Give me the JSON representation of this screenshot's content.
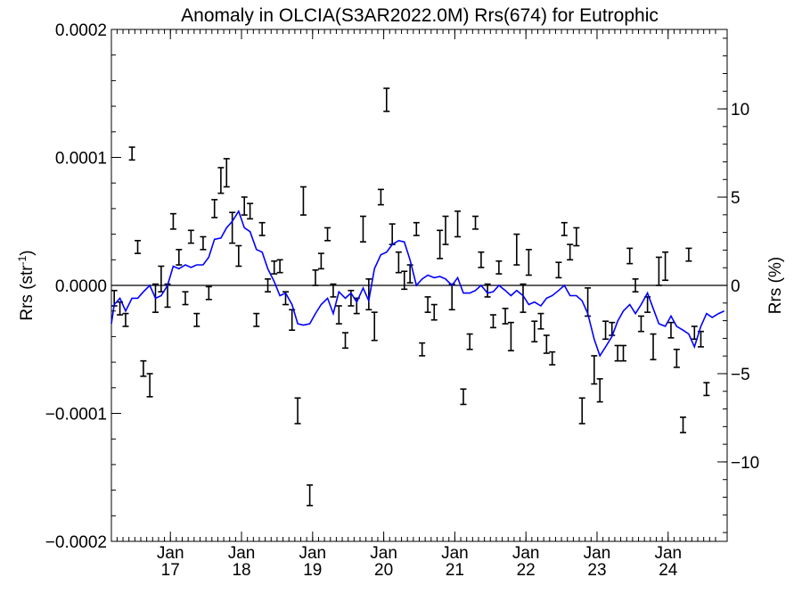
{
  "chart_data": {
    "type": "line",
    "title": "Anomaly in OLCIA(S3AR2022.0M) Rrs(674) for Eutrophic",
    "ylabel_left": "Rrs (str",
    "ylabel_left_sup": "-1",
    "ylabel_left_close": ")",
    "ylabel_right": "Rrs (%)",
    "ylim": [
      -0.0002,
      0.0002
    ],
    "ylim_right": [
      -14.5,
      14.5
    ],
    "xlim": [
      2016.17,
      2024.83
    ],
    "left_ticks": [
      {
        "value": 0.0002,
        "label": "0.0002"
      },
      {
        "value": 0.0001,
        "label": "0.0001"
      },
      {
        "value": 0.0,
        "label": "0.0000"
      },
      {
        "value": -0.0001,
        "label": "−0.0001"
      },
      {
        "value": -0.0002,
        "label": "−0.0002"
      }
    ],
    "right_ticks": [
      {
        "value": 10,
        "label": "10"
      },
      {
        "value": 5,
        "label": "5"
      },
      {
        "value": 0,
        "label": "0"
      },
      {
        "value": -5,
        "label": "−5"
      },
      {
        "value": -10,
        "label": "−10"
      }
    ],
    "x_ticks": [
      {
        "value": 2017,
        "label1": "Jan",
        "label2": "17"
      },
      {
        "value": 2018,
        "label1": "Jan",
        "label2": "18"
      },
      {
        "value": 2019,
        "label1": "Jan",
        "label2": "19"
      },
      {
        "value": 2020,
        "label1": "Jan",
        "label2": "20"
      },
      {
        "value": 2021,
        "label1": "Jan",
        "label2": "21"
      },
      {
        "value": 2022,
        "label1": "Jan",
        "label2": "22"
      },
      {
        "value": 2023,
        "label1": "Jan",
        "label2": "23"
      },
      {
        "value": 2024,
        "label1": "Jan",
        "label2": "24"
      }
    ],
    "series": [
      {
        "kind": "errorbar",
        "color": "#000000",
        "points": [
          [
            2016.21,
            -1e-05,
            6e-06
          ],
          [
            2016.29,
            -1.8e-05,
            5e-06
          ],
          [
            2016.37,
            -2.7e-05,
            5e-06
          ],
          [
            2016.46,
            0.000103,
            5e-06
          ],
          [
            2016.54,
            3e-05,
            5e-06
          ],
          [
            2016.62,
            -6.5e-05,
            6e-06
          ],
          [
            2016.71,
            -7.8e-05,
            9e-06
          ],
          [
            2016.79,
            -1e-05,
            1.1e-05
          ],
          [
            2016.87,
            5e-06,
            1e-05
          ],
          [
            2016.96,
            -8e-06,
            9e-06
          ],
          [
            2017.04,
            5e-05,
            6e-06
          ],
          [
            2017.12,
            2.2e-05,
            6e-06
          ],
          [
            2017.21,
            -1e-05,
            5e-06
          ],
          [
            2017.29,
            3.8e-05,
            5e-06
          ],
          [
            2017.37,
            -2.7e-05,
            5e-06
          ],
          [
            2017.46,
            3.3e-05,
            5e-06
          ],
          [
            2017.54,
            -6e-06,
            5e-06
          ],
          [
            2017.62,
            6e-05,
            7e-06
          ],
          [
            2017.71,
            8.2e-05,
            1e-05
          ],
          [
            2017.79,
            8.8e-05,
            1.1e-05
          ],
          [
            2017.87,
            4.5e-05,
            1.2e-05
          ],
          [
            2017.96,
            2.3e-05,
            8e-06
          ],
          [
            2018.04,
            6.2e-05,
            7e-06
          ],
          [
            2018.12,
            5.8e-05,
            6e-06
          ],
          [
            2018.21,
            -2.7e-05,
            5e-06
          ],
          [
            2018.29,
            4.4e-05,
            5e-06
          ],
          [
            2018.37,
            0.0,
            5e-06
          ],
          [
            2018.46,
            1.4e-05,
            5e-06
          ],
          [
            2018.54,
            1.5e-05,
            5e-06
          ],
          [
            2018.62,
            -1e-05,
            5e-06
          ],
          [
            2018.71,
            -2.7e-05,
            8e-06
          ],
          [
            2018.79,
            -9.8e-05,
            1e-05
          ],
          [
            2018.87,
            6.6e-05,
            1.1e-05
          ],
          [
            2018.96,
            -0.000164,
            8e-06
          ],
          [
            2019.04,
            6e-06,
            6e-06
          ],
          [
            2019.12,
            1.9e-05,
            6e-06
          ],
          [
            2019.21,
            4e-05,
            5e-06
          ],
          [
            2019.29,
            -4e-06,
            5e-06
          ],
          [
            2019.37,
            -2.3e-05,
            7e-06
          ],
          [
            2019.46,
            -4.3e-05,
            6e-06
          ],
          [
            2019.54,
            -1e-05,
            6e-06
          ],
          [
            2019.62,
            -1.6e-05,
            6e-06
          ],
          [
            2019.71,
            4.4e-05,
            1e-05
          ],
          [
            2019.79,
            -7e-06,
            1.2e-05
          ],
          [
            2019.87,
            -3.2e-05,
            1.1e-05
          ],
          [
            2019.96,
            6.9e-05,
            6e-06
          ],
          [
            2020.04,
            0.000145,
            9e-06
          ],
          [
            2020.12,
            4e-05,
            8e-06
          ],
          [
            2020.21,
            1.8e-05,
            8e-06
          ],
          [
            2020.29,
            4e-06,
            7e-06
          ],
          [
            2020.37,
            9e-06,
            7e-06
          ],
          [
            2020.46,
            4.4e-05,
            5e-06
          ],
          [
            2020.54,
            -5e-05,
            5e-06
          ],
          [
            2020.62,
            -1.5e-05,
            6e-06
          ],
          [
            2020.71,
            -2.1e-05,
            6e-06
          ],
          [
            2020.79,
            3.2e-05,
            1.1e-05
          ],
          [
            2020.87,
            4.3e-05,
            1.1e-05
          ],
          [
            2020.96,
            -9e-06,
            1e-05
          ],
          [
            2021.04,
            4.8e-05,
            1e-05
          ],
          [
            2021.12,
            -8.7e-05,
            6e-06
          ],
          [
            2021.21,
            -4.4e-05,
            6e-06
          ],
          [
            2021.29,
            4.9e-05,
            5e-06
          ],
          [
            2021.37,
            2e-05,
            6e-06
          ],
          [
            2021.46,
            -4e-06,
            5e-06
          ],
          [
            2021.54,
            -2.8e-05,
            5e-06
          ],
          [
            2021.62,
            1.4e-05,
            5e-06
          ],
          [
            2021.71,
            -2.4e-05,
            6e-06
          ],
          [
            2021.79,
            -4e-05,
            1.1e-05
          ],
          [
            2021.87,
            2.8e-05,
            1.2e-05
          ],
          [
            2021.96,
            -1e-05,
            1.1e-05
          ],
          [
            2022.04,
            1.8e-05,
            1e-05
          ],
          [
            2022.12,
            -3.6e-05,
            8e-06
          ],
          [
            2022.21,
            -2.8e-05,
            6e-06
          ],
          [
            2022.29,
            -4.6e-05,
            7e-06
          ],
          [
            2022.37,
            -5.7e-05,
            5e-06
          ],
          [
            2022.46,
            1.2e-05,
            6e-06
          ],
          [
            2022.54,
            4.4e-05,
            5e-06
          ],
          [
            2022.62,
            2.6e-05,
            6e-06
          ],
          [
            2022.71,
            3.8e-05,
            7e-06
          ],
          [
            2022.79,
            -9.8e-05,
            1e-05
          ],
          [
            2022.87,
            -1.3e-05,
            1.1e-05
          ],
          [
            2022.96,
            -6.6e-05,
            1.1e-05
          ],
          [
            2023.04,
            -8.2e-05,
            9e-06
          ],
          [
            2023.12,
            -3.5e-05,
            7e-06
          ],
          [
            2023.21,
            -3.4e-05,
            5e-06
          ],
          [
            2023.29,
            -5.3e-05,
            6e-06
          ],
          [
            2023.37,
            -5.3e-05,
            6e-06
          ],
          [
            2023.46,
            2.3e-05,
            6e-06
          ],
          [
            2023.54,
            0.0,
            5e-06
          ],
          [
            2023.62,
            -3e-05,
            6e-06
          ],
          [
            2023.71,
            -1.5e-05,
            6e-06
          ],
          [
            2023.79,
            -4.8e-05,
            1e-05
          ],
          [
            2023.87,
            1.1e-05,
            1.1e-05
          ],
          [
            2023.96,
            1.5e-05,
            1.1e-05
          ],
          [
            2024.04,
            -3.5e-05,
            6e-06
          ],
          [
            2024.12,
            -5.7e-05,
            7e-06
          ],
          [
            2024.21,
            -0.000109,
            6e-06
          ],
          [
            2024.29,
            2.4e-05,
            5e-06
          ],
          [
            2024.37,
            -3.7e-05,
            5e-06
          ],
          [
            2024.46,
            -4.2e-05,
            6e-06
          ],
          [
            2024.54,
            -8.1e-05,
            5e-06
          ]
        ]
      },
      {
        "kind": "line",
        "color": "#0000ff",
        "points": [
          [
            2016.17,
            -3e-05
          ],
          [
            2016.21,
            -1.5e-05
          ],
          [
            2016.29,
            -1e-05
          ],
          [
            2016.37,
            -2e-05
          ],
          [
            2016.46,
            -1e-05
          ],
          [
            2016.54,
            -1e-05
          ],
          [
            2016.62,
            -5e-06
          ],
          [
            2016.71,
            0.0
          ],
          [
            2016.79,
            -1e-05
          ],
          [
            2016.87,
            -8e-06
          ],
          [
            2016.96,
            0.0
          ],
          [
            2017.04,
            1.5e-05
          ],
          [
            2017.12,
            1.3e-05
          ],
          [
            2017.21,
            1.6e-05
          ],
          [
            2017.29,
            1.4e-05
          ],
          [
            2017.37,
            1.6e-05
          ],
          [
            2017.46,
            1.6e-05
          ],
          [
            2017.54,
            2.2e-05
          ],
          [
            2017.62,
            3.6e-05
          ],
          [
            2017.71,
            3.7e-05
          ],
          [
            2017.79,
            4.5e-05
          ],
          [
            2017.87,
            5e-05
          ],
          [
            2017.96,
            5.8e-05
          ],
          [
            2018.04,
            4.5e-05
          ],
          [
            2018.12,
            4.2e-05
          ],
          [
            2018.21,
            2.8e-05
          ],
          [
            2018.29,
            2.6e-05
          ],
          [
            2018.37,
            1.3e-05
          ],
          [
            2018.46,
            3e-06
          ],
          [
            2018.54,
            -8e-06
          ],
          [
            2018.62,
            -6e-06
          ],
          [
            2018.71,
            -1.5e-05
          ],
          [
            2018.79,
            -3e-05
          ],
          [
            2018.87,
            -3.1e-05
          ],
          [
            2018.96,
            -3e-05
          ],
          [
            2019.04,
            -2.2e-05
          ],
          [
            2019.12,
            -1.5e-05
          ],
          [
            2019.21,
            -1e-05
          ],
          [
            2019.29,
            -2.2e-05
          ],
          [
            2019.37,
            -5e-06
          ],
          [
            2019.46,
            -1e-05
          ],
          [
            2019.54,
            -6e-06
          ],
          [
            2019.62,
            -1.3e-05
          ],
          [
            2019.71,
            -2e-06
          ],
          [
            2019.79,
            -1.2e-05
          ],
          [
            2019.87,
            1.3e-05
          ],
          [
            2019.96,
            2.4e-05
          ],
          [
            2020.04,
            2.6e-05
          ],
          [
            2020.12,
            3.2e-05
          ],
          [
            2020.21,
            3.5e-05
          ],
          [
            2020.29,
            3.4e-05
          ],
          [
            2020.37,
            2e-05
          ],
          [
            2020.46,
            0.0
          ],
          [
            2020.54,
            5e-06
          ],
          [
            2020.62,
            8e-06
          ],
          [
            2020.71,
            6e-06
          ],
          [
            2020.79,
            7e-06
          ],
          [
            2020.87,
            5e-06
          ],
          [
            2020.96,
            0.0
          ],
          [
            2021.04,
            6e-06
          ],
          [
            2021.12,
            -6e-06
          ],
          [
            2021.21,
            -6e-06
          ],
          [
            2021.29,
            -4e-06
          ],
          [
            2021.37,
            0.0
          ],
          [
            2021.46,
            -6e-06
          ],
          [
            2021.54,
            -5e-06
          ],
          [
            2021.62,
            0.0
          ],
          [
            2021.71,
            -4e-06
          ],
          [
            2021.79,
            -8e-06
          ],
          [
            2021.87,
            -4e-06
          ],
          [
            2021.96,
            -8e-06
          ],
          [
            2022.04,
            -1.5e-05
          ],
          [
            2022.12,
            -1.3e-05
          ],
          [
            2022.21,
            -1.6e-05
          ],
          [
            2022.29,
            -1e-05
          ],
          [
            2022.37,
            -8e-06
          ],
          [
            2022.46,
            -4e-06
          ],
          [
            2022.54,
            0.0
          ],
          [
            2022.62,
            -8e-06
          ],
          [
            2022.71,
            -8e-06
          ],
          [
            2022.79,
            -1.2e-05
          ],
          [
            2022.87,
            -2.2e-05
          ],
          [
            2022.96,
            -4.2e-05
          ],
          [
            2023.04,
            -5.5e-05
          ],
          [
            2023.12,
            -4.8e-05
          ],
          [
            2023.21,
            -4e-05
          ],
          [
            2023.29,
            -2.8e-05
          ],
          [
            2023.37,
            -2e-05
          ],
          [
            2023.46,
            -1.5e-05
          ],
          [
            2023.54,
            -2.2e-05
          ],
          [
            2023.62,
            -1.5e-05
          ],
          [
            2023.71,
            -6e-06
          ],
          [
            2023.79,
            -1.8e-05
          ],
          [
            2023.87,
            -3e-05
          ],
          [
            2023.96,
            -3.2e-05
          ],
          [
            2024.04,
            -2.4e-05
          ],
          [
            2024.12,
            -3.2e-05
          ],
          [
            2024.21,
            -3.5e-05
          ],
          [
            2024.29,
            -3.8e-05
          ],
          [
            2024.37,
            -4.8e-05
          ],
          [
            2024.46,
            -3.2e-05
          ],
          [
            2024.54,
            -2.2e-05
          ],
          [
            2024.62,
            -2.5e-05
          ],
          [
            2024.71,
            -2.2e-05
          ],
          [
            2024.79,
            -2e-05
          ]
        ]
      }
    ]
  }
}
